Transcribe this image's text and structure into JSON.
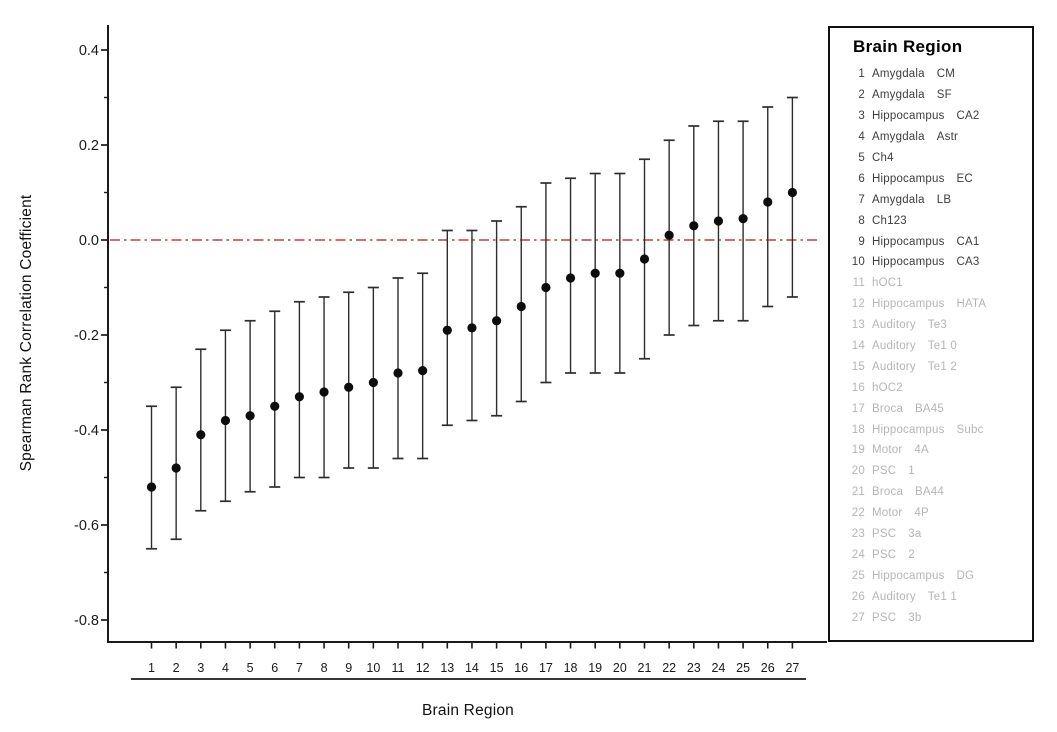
{
  "colors": {
    "reference_line": "#cb5a52",
    "marker": "#0d0d0d",
    "error_bar": "#2d2d2d",
    "axis": "#1a1a1a",
    "legend_text_active": "#3d3d3d",
    "legend_text_dimmed": "#b5b5b5",
    "legend_border": "#101010"
  },
  "chart_data": {
    "type": "scatter",
    "subtype": "point-estimates-with-error-bars",
    "title": "",
    "xlabel": "Brain Region",
    "ylabel": "Spearman Rank Correlation Coefficient",
    "legend_title": "Brain Region",
    "legend_position": "right",
    "grid": false,
    "ylim": [
      -0.85,
      0.45
    ],
    "y_tick_labels": [
      "0.4",
      "0.2",
      "0.0",
      "-0.2",
      "-0.4",
      "-0.6",
      "-0.8"
    ],
    "y_minor_ticks": [
      0.3,
      0.1,
      -0.1,
      -0.3,
      -0.5,
      -0.7
    ],
    "reference_line_y": 0.0,
    "reference_line_style": "dash-dot",
    "points": [
      {
        "x": 1,
        "region": "Amygdala",
        "subregion": "CM",
        "y": -0.52,
        "ci_low": -0.65,
        "ci_high": -0.35,
        "dimmed": false
      },
      {
        "x": 2,
        "region": "Amygdala",
        "subregion": "SF",
        "y": -0.48,
        "ci_low": -0.63,
        "ci_high": -0.31,
        "dimmed": false
      },
      {
        "x": 3,
        "region": "Hippocampus",
        "subregion": "CA2",
        "y": -0.41,
        "ci_low": -0.57,
        "ci_high": -0.23,
        "dimmed": false
      },
      {
        "x": 4,
        "region": "Amygdala",
        "subregion": "Astr",
        "y": -0.38,
        "ci_low": -0.55,
        "ci_high": -0.19,
        "dimmed": false
      },
      {
        "x": 5,
        "region": "Ch4",
        "subregion": "",
        "y": -0.37,
        "ci_low": -0.53,
        "ci_high": -0.17,
        "dimmed": false
      },
      {
        "x": 6,
        "region": "Hippocampus",
        "subregion": "EC",
        "y": -0.35,
        "ci_low": -0.52,
        "ci_high": -0.15,
        "dimmed": false
      },
      {
        "x": 7,
        "region": "Amygdala",
        "subregion": "LB",
        "y": -0.33,
        "ci_low": -0.5,
        "ci_high": -0.13,
        "dimmed": false
      },
      {
        "x": 8,
        "region": "Ch123",
        "subregion": "",
        "y": -0.32,
        "ci_low": -0.5,
        "ci_high": -0.12,
        "dimmed": false
      },
      {
        "x": 9,
        "region": "Hippocampus",
        "subregion": "CA1",
        "y": -0.31,
        "ci_low": -0.48,
        "ci_high": -0.11,
        "dimmed": false
      },
      {
        "x": 10,
        "region": "Hippocampus",
        "subregion": "CA3",
        "y": -0.3,
        "ci_low": -0.48,
        "ci_high": -0.1,
        "dimmed": false
      },
      {
        "x": 11,
        "region": "hOC1",
        "subregion": "",
        "y": -0.28,
        "ci_low": -0.46,
        "ci_high": -0.08,
        "dimmed": true
      },
      {
        "x": 12,
        "region": "Hippocampus",
        "subregion": "HATA",
        "y": -0.275,
        "ci_low": -0.46,
        "ci_high": -0.07,
        "dimmed": true
      },
      {
        "x": 13,
        "region": "Auditory",
        "subregion": "Te3",
        "y": -0.19,
        "ci_low": -0.39,
        "ci_high": 0.02,
        "dimmed": true
      },
      {
        "x": 14,
        "region": "Auditory",
        "subregion": "Te1 0",
        "y": -0.185,
        "ci_low": -0.38,
        "ci_high": 0.02,
        "dimmed": true
      },
      {
        "x": 15,
        "region": "Auditory",
        "subregion": "Te1 2",
        "y": -0.17,
        "ci_low": -0.37,
        "ci_high": 0.04,
        "dimmed": true
      },
      {
        "x": 16,
        "region": "hOC2",
        "subregion": "",
        "y": -0.14,
        "ci_low": -0.34,
        "ci_high": 0.07,
        "dimmed": true
      },
      {
        "x": 17,
        "region": "Broca",
        "subregion": "BA45",
        "y": -0.1,
        "ci_low": -0.3,
        "ci_high": 0.12,
        "dimmed": true
      },
      {
        "x": 18,
        "region": "Hippocampus",
        "subregion": "Subc",
        "y": -0.08,
        "ci_low": -0.28,
        "ci_high": 0.13,
        "dimmed": true
      },
      {
        "x": 19,
        "region": "Motor",
        "subregion": "4A",
        "y": -0.07,
        "ci_low": -0.28,
        "ci_high": 0.14,
        "dimmed": true
      },
      {
        "x": 20,
        "region": "PSC",
        "subregion": "1",
        "y": -0.07,
        "ci_low": -0.28,
        "ci_high": 0.14,
        "dimmed": true
      },
      {
        "x": 21,
        "region": "Broca",
        "subregion": "BA44",
        "y": -0.04,
        "ci_low": -0.25,
        "ci_high": 0.17,
        "dimmed": true
      },
      {
        "x": 22,
        "region": "Motor",
        "subregion": "4P",
        "y": 0.01,
        "ci_low": -0.2,
        "ci_high": 0.21,
        "dimmed": true
      },
      {
        "x": 23,
        "region": "PSC",
        "subregion": "3a",
        "y": 0.03,
        "ci_low": -0.18,
        "ci_high": 0.24,
        "dimmed": true
      },
      {
        "x": 24,
        "region": "PSC",
        "subregion": "2",
        "y": 0.04,
        "ci_low": -0.17,
        "ci_high": 0.25,
        "dimmed": true
      },
      {
        "x": 25,
        "region": "Hippocampus",
        "subregion": "DG",
        "y": 0.045,
        "ci_low": -0.17,
        "ci_high": 0.25,
        "dimmed": true
      },
      {
        "x": 26,
        "region": "Auditory",
        "subregion": "Te1 1",
        "y": 0.08,
        "ci_low": -0.14,
        "ci_high": 0.28,
        "dimmed": true
      },
      {
        "x": 27,
        "region": "PSC",
        "subregion": "3b",
        "y": 0.1,
        "ci_low": -0.12,
        "ci_high": 0.3,
        "dimmed": true
      }
    ]
  }
}
